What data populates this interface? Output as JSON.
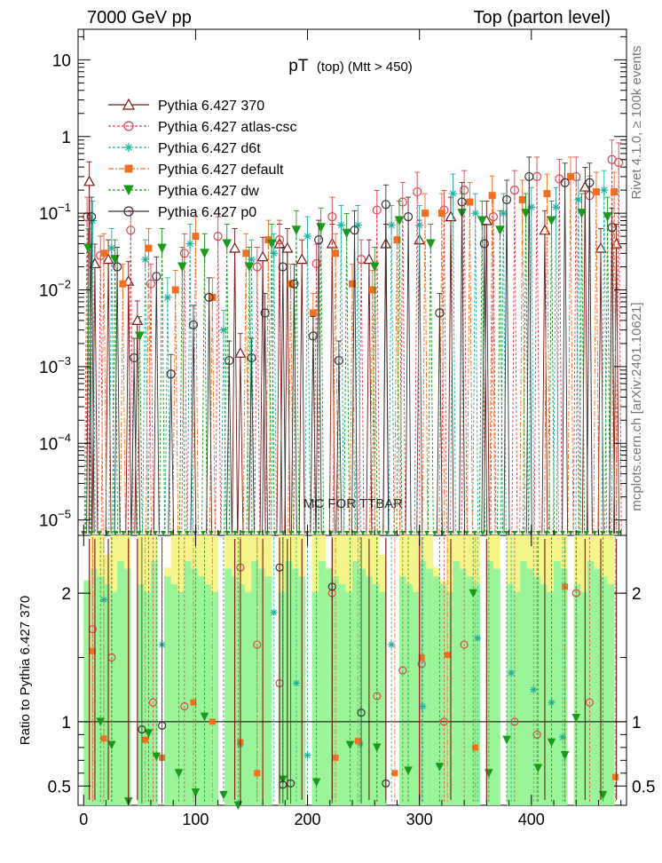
{
  "header": {
    "left": "7000 GeV pp",
    "right": "Top (parton level)"
  },
  "side_labels": {
    "rivet": "Rivet 4.1.0, ≥ 100k events",
    "source": "mcplots.cern.ch [arXiv:2401.10621]"
  },
  "watermark": "MC FOR TTBAR",
  "chart_data": {
    "type": "line",
    "title_main": "pT",
    "title_sub": "(top) (Mtt > 450)",
    "xlabel": "",
    "ylabel_top": "",
    "ylabel_ratio": "Ratio to Pythia 6.427 370",
    "xlim": [
      -5,
      485
    ],
    "ylim_main_log": [
      6.3e-06,
      25
    ],
    "ylim_ratio": [
      0.35,
      2.45
    ],
    "x_ticks": [
      0,
      100,
      200,
      300,
      400
    ],
    "y_ticks_main": [
      {
        "value": 10,
        "label": "10"
      },
      {
        "value": 1,
        "label": "1"
      },
      {
        "value": 0.1,
        "label": "10−1"
      },
      {
        "value": 0.01,
        "label": "10−2"
      },
      {
        "value": 0.001,
        "label": "10−3"
      },
      {
        "value": 0.0001,
        "label": "10−4"
      },
      {
        "value": 1e-05,
        "label": "10−5"
      }
    ],
    "y_ticks_ratio": [
      {
        "value": 2,
        "label": "2"
      },
      {
        "value": 1,
        "label": "1"
      },
      {
        "value": 0.5,
        "label": "0.5"
      }
    ],
    "legend_position": "top-left",
    "series": [
      {
        "name": "Pythia 6.427 370",
        "color": "#7a1616",
        "marker": "triangle-open",
        "dash": "",
        "points": [
          [
            5,
            0.26
          ],
          [
            10,
            0.022
          ],
          [
            22,
            0.025
          ],
          [
            40,
            0.013
          ],
          [
            48,
            0.004
          ],
          [
            135,
            0.035
          ],
          [
            140,
            0.0015
          ],
          [
            160,
            0.027
          ],
          [
            175,
            0.04
          ],
          [
            182,
            0.035
          ],
          [
            195,
            0.025
          ],
          [
            222,
            0.04
          ],
          [
            255,
            0.025
          ],
          [
            270,
            0.04
          ],
          [
            300,
            0.045
          ],
          [
            328,
            0.09
          ],
          [
            360,
            0.08
          ],
          [
            412,
            0.06
          ],
          [
            448,
            0.22
          ],
          [
            462,
            0.035
          ],
          [
            476,
            0.04
          ]
        ]
      },
      {
        "name": "Pythia 6.427 atlas-csc",
        "color": "#e04050",
        "marker": "circle-open",
        "dash": "3,2",
        "points": [
          [
            3,
            0.09
          ],
          [
            15,
            0.028
          ],
          [
            42,
            0.06
          ],
          [
            60,
            0.012
          ],
          [
            90,
            0.03
          ],
          [
            120,
            0.05
          ],
          [
            155,
            0.02
          ],
          [
            175,
            0.045
          ],
          [
            208,
            0.022
          ],
          [
            222,
            0.09
          ],
          [
            248,
            0.025
          ],
          [
            262,
            0.11
          ],
          [
            285,
            0.14
          ],
          [
            298,
            0.19
          ],
          [
            322,
            0.11
          ],
          [
            340,
            0.2
          ],
          [
            366,
            0.09
          ],
          [
            385,
            0.2
          ],
          [
            405,
            0.3
          ],
          [
            425,
            0.28
          ],
          [
            440,
            0.3
          ],
          [
            452,
            0.17
          ],
          [
            472,
            0.5
          ],
          [
            478,
            0.46
          ]
        ]
      },
      {
        "name": "Pythia 6.427 d6t",
        "color": "#20b0a0",
        "marker": "star",
        "dash": "3,2",
        "points": [
          [
            8,
            0.08
          ],
          [
            25,
            0.035
          ],
          [
            55,
            0.025
          ],
          [
            75,
            0.008
          ],
          [
            95,
            0.04
          ],
          [
            125,
            0.003
          ],
          [
            150,
            0.025
          ],
          [
            170,
            0.03
          ],
          [
            200,
            0.05
          ],
          [
            230,
            0.07
          ],
          [
            245,
            0.07
          ],
          [
            275,
            0.07
          ],
          [
            300,
            0.07
          ],
          [
            330,
            0.18
          ],
          [
            350,
            0.1
          ],
          [
            375,
            0.1
          ],
          [
            400,
            0.12
          ],
          [
            422,
            0.12
          ],
          [
            442,
            0.15
          ],
          [
            465,
            0.2
          ]
        ]
      },
      {
        "name": "Pythia 6.427 default",
        "color": "#f07020",
        "marker": "square-filled",
        "dash": "6,2,2,2",
        "points": [
          [
            18,
            0.03
          ],
          [
            35,
            0.012
          ],
          [
            58,
            0.035
          ],
          [
            82,
            0.01
          ],
          [
            100,
            0.05
          ],
          [
            115,
            0.008
          ],
          [
            145,
            0.03
          ],
          [
            165,
            0.045
          ],
          [
            185,
            0.012
          ],
          [
            205,
            0.005
          ],
          [
            225,
            0.03
          ],
          [
            240,
            0.012
          ],
          [
            258,
            0.01
          ],
          [
            280,
            0.045
          ],
          [
            305,
            0.1
          ],
          [
            320,
            0.1
          ],
          [
            345,
            0.14
          ],
          [
            365,
            0.17
          ],
          [
            392,
            0.15
          ],
          [
            414,
            0.18
          ],
          [
            435,
            0.3
          ],
          [
            458,
            0.19
          ],
          [
            474,
            0.19
          ]
        ]
      },
      {
        "name": "Pythia 6.427 dw",
        "color": "#1a9a1a",
        "marker": "triangle-down",
        "dash": "3,2",
        "points": [
          [
            4,
            0.035
          ],
          [
            28,
            0.025
          ],
          [
            50,
            0.0025
          ],
          [
            70,
            0.035
          ],
          [
            88,
            0.02
          ],
          [
            108,
            0.03
          ],
          [
            128,
            0.04
          ],
          [
            148,
            0.02
          ],
          [
            168,
            0.04
          ],
          [
            190,
            0.06
          ],
          [
            212,
            0.065
          ],
          [
            235,
            0.055
          ],
          [
            260,
            0.02
          ],
          [
            282,
            0.08
          ],
          [
            310,
            0.04
          ],
          [
            338,
            0.1
          ],
          [
            356,
            0.08
          ],
          [
            372,
            0.06
          ],
          [
            395,
            0.1
          ],
          [
            418,
            0.08
          ],
          [
            445,
            0.1
          ],
          [
            468,
            0.09
          ]
        ]
      },
      {
        "name": "Pythia 6.427 p0",
        "color": "#333333",
        "marker": "circle-open",
        "dash": "",
        "points": [
          [
            7,
            0.09
          ],
          [
            30,
            0.02
          ],
          [
            45,
            0.0013
          ],
          [
            65,
            0.015
          ],
          [
            78,
            0.0008
          ],
          [
            98,
            0.0035
          ],
          [
            112,
            0.008
          ],
          [
            130,
            0.0012
          ],
          [
            150,
            0.0013
          ],
          [
            162,
            0.005
          ],
          [
            178,
            0.02
          ],
          [
            188,
            0.012
          ],
          [
            205,
            0.0025
          ],
          [
            210,
            0.045
          ],
          [
            228,
            0.0012
          ],
          [
            242,
            0.06
          ],
          [
            270,
            0.13
          ],
          [
            290,
            0.09
          ],
          [
            318,
            0.005
          ],
          [
            338,
            0.14
          ],
          [
            358,
            0.04
          ],
          [
            378,
            0.15
          ],
          [
            398,
            0.3
          ],
          [
            430,
            0.25
          ],
          [
            452,
            0.25
          ],
          [
            472,
            0.065
          ]
        ]
      }
    ],
    "ratio_points": [
      {
        "series": 1,
        "points": [
          [
            8,
            1.72
          ],
          [
            25,
            1.5
          ],
          [
            62,
            1.15
          ],
          [
            90,
            1.12
          ],
          [
            140,
            2.2
          ],
          [
            155,
            1.6
          ],
          [
            175,
            1.3
          ],
          [
            222,
            2.0
          ],
          [
            262,
            1.2
          ],
          [
            285,
            1.4
          ],
          [
            302,
            1.45
          ],
          [
            322,
            1.0
          ],
          [
            340,
            1.6
          ],
          [
            385,
            1.0
          ],
          [
            405,
            0.9
          ],
          [
            440,
            2.0
          ],
          [
            452,
            1.15
          ]
        ]
      },
      {
        "series": 2,
        "points": [
          [
            18,
            1.95
          ],
          [
            70,
            1.6
          ],
          [
            140,
            0.82
          ],
          [
            170,
            1.85
          ],
          [
            190,
            1.3
          ],
          [
            200,
            0.74
          ],
          [
            247,
            0.83
          ],
          [
            275,
            1.6
          ],
          [
            303,
            1.12
          ],
          [
            352,
            1.65
          ],
          [
            382,
            1.38
          ],
          [
            402,
            1.25
          ],
          [
            418,
            1.15
          ],
          [
            428,
            0.88
          ]
        ]
      },
      {
        "series": 3,
        "points": [
          [
            8,
            1.55
          ],
          [
            18,
            0.87
          ],
          [
            55,
            0.86
          ],
          [
            70,
            0.72
          ],
          [
            98,
            1.15
          ],
          [
            115,
            1.0
          ],
          [
            140,
            0.84
          ],
          [
            155,
            0.6
          ],
          [
            225,
            0.72
          ],
          [
            245,
            0.85
          ],
          [
            278,
            0.6
          ],
          [
            302,
            1.5
          ],
          [
            325,
            1.52
          ],
          [
            350,
            0.8
          ],
          [
            430,
            2.05
          ],
          [
            475,
            0.57
          ]
        ]
      },
      {
        "series": 4,
        "points": [
          [
            15,
            1.0
          ],
          [
            25,
            0.82
          ],
          [
            40,
            0.38
          ],
          [
            58,
            0.91
          ],
          [
            65,
            0.73
          ],
          [
            85,
            0.6
          ],
          [
            100,
            0.45
          ],
          [
            108,
            1.04
          ],
          [
            125,
            0.43
          ],
          [
            138,
            0.35
          ],
          [
            178,
            0.55
          ],
          [
            208,
            0.53
          ],
          [
            238,
            0.82
          ],
          [
            262,
            0.8
          ],
          [
            290,
            0.62
          ],
          [
            318,
            0.65
          ],
          [
            348,
            2.0
          ],
          [
            362,
            0.6
          ],
          [
            378,
            0.86
          ],
          [
            406,
            0.64
          ],
          [
            418,
            0.84
          ],
          [
            430,
            0.74
          ],
          [
            440,
            1.03
          ],
          [
            464,
            0.43
          ]
        ]
      },
      {
        "series": 5,
        "points": [
          [
            52,
            0.94
          ],
          [
            70,
            0.97
          ],
          [
            175,
            2.2
          ],
          [
            178,
            0.51
          ],
          [
            185,
            0.52
          ],
          [
            222,
            2.05
          ],
          [
            248,
            1.07
          ],
          [
            270,
            0.52
          ]
        ]
      }
    ],
    "ratio_band_values": [
      2.1,
      2.45,
      2.45,
      2.3,
      2.45,
      2.45,
      2.45,
      2.45,
      2.45,
      2.45,
      2.45,
      2.45,
      2.2,
      2.45,
      2.45,
      2.45,
      2.45,
      2.45,
      2.45,
      2.45,
      2.2,
      2.45,
      2.45,
      2.45,
      2.45,
      2.45,
      2.45,
      2.45,
      2.45,
      2.45,
      2.45,
      2.45,
      2.45,
      2.45,
      2.45,
      2.45,
      2.2,
      2.45,
      2.45,
      2.45,
      2.45,
      2.45,
      2.45,
      2.45,
      2.3,
      2.45,
      2.45,
      2.45,
      2.45,
      2.45,
      2.45,
      2.45,
      2.2,
      2.1,
      2.45,
      2.45,
      2.45,
      2.45,
      2.45,
      2.45,
      2.45,
      2.45,
      2.45,
      2.45,
      2.45,
      2.45,
      2.45,
      2.45,
      2.45,
      2.45,
      2.45,
      2.45,
      2.45,
      2.45,
      2.45,
      2.45,
      2.45,
      2.45,
      2.45,
      2.45
    ]
  }
}
